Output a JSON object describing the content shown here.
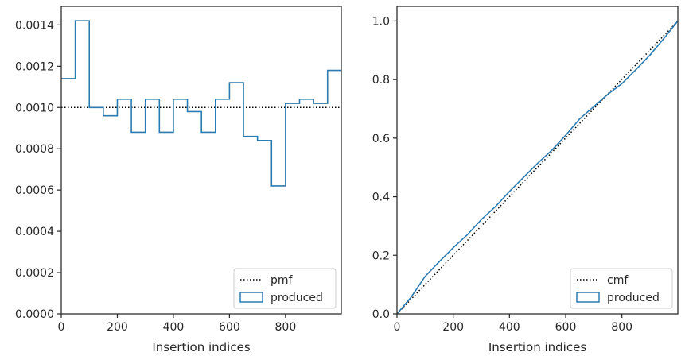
{
  "chart_data": [
    {
      "type": "histogram-step",
      "xlabel": "Insertion indices",
      "ylabel": "",
      "xlim": [
        0,
        999
      ],
      "ylim": [
        0,
        0.00149
      ],
      "xticks": [
        0,
        200,
        400,
        600,
        800
      ],
      "xtick_labels": [
        "0",
        "200",
        "400",
        "600",
        "800"
      ],
      "yticks": [
        0,
        0.0002,
        0.0004,
        0.0006,
        0.0008,
        0.001,
        0.0012,
        0.0014
      ],
      "ytick_labels": [
        "0.0000",
        "0.0002",
        "0.0004",
        "0.0006",
        "0.0008",
        "0.0010",
        "0.0012",
        "0.0014"
      ],
      "grid": false,
      "legend_position": "lower-right",
      "series": [
        {
          "name": "pmf",
          "style": "dotted",
          "color": "#000000",
          "x": [
            0,
            999
          ],
          "y": [
            0.001,
            0.001
          ]
        },
        {
          "name": "produced",
          "style": "step",
          "color": "#2b7bb0",
          "bin_edges": [
            0,
            50,
            100,
            150,
            200,
            250,
            300,
            350,
            400,
            450,
            500,
            550,
            600,
            650,
            700,
            750,
            800,
            850,
            900,
            950,
            999
          ],
          "values": [
            0.00114,
            0.00142,
            0.001,
            0.00096,
            0.00104,
            0.00088,
            0.00104,
            0.00088,
            0.00104,
            0.00098,
            0.00088,
            0.00104,
            0.00112,
            0.00086,
            0.00084,
            0.00062,
            0.00102,
            0.00104,
            0.00102,
            0.00118
          ]
        }
      ]
    },
    {
      "type": "line",
      "xlabel": "Insertion indices",
      "ylabel": "",
      "xlim": [
        0,
        999
      ],
      "ylim": [
        0,
        1.05
      ],
      "xticks": [
        0,
        200,
        400,
        600,
        800
      ],
      "xtick_labels": [
        "0",
        "200",
        "400",
        "600",
        "800"
      ],
      "yticks": [
        0,
        0.2,
        0.4,
        0.6,
        0.8,
        1.0
      ],
      "ytick_labels": [
        "0.0",
        "0.2",
        "0.4",
        "0.6",
        "0.8",
        "1.0"
      ],
      "grid": false,
      "legend_position": "lower-right",
      "series": [
        {
          "name": "cmf",
          "style": "dotted",
          "color": "#000000",
          "x": [
            0,
            999
          ],
          "y": [
            0,
            1.0
          ]
        },
        {
          "name": "produced",
          "style": "solid",
          "color": "#2b7bb0",
          "x": [
            0,
            50,
            100,
            150,
            200,
            250,
            300,
            350,
            400,
            450,
            500,
            550,
            600,
            650,
            700,
            750,
            800,
            850,
            900,
            950,
            999
          ],
          "y": [
            0,
            0.057,
            0.128,
            0.178,
            0.226,
            0.27,
            0.322,
            0.366,
            0.418,
            0.466,
            0.514,
            0.558,
            0.61,
            0.666,
            0.708,
            0.75,
            0.786,
            0.834,
            0.884,
            0.941,
            1.0
          ]
        }
      ]
    }
  ]
}
